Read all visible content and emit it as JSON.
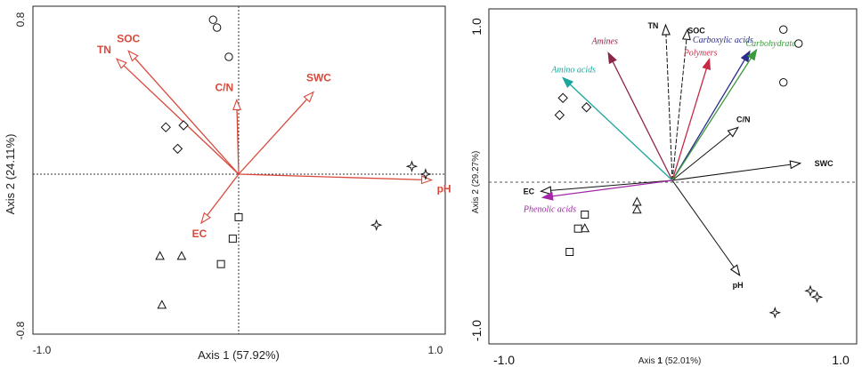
{
  "chart_data": [
    {
      "type": "scatter",
      "title": "",
      "xlabel": "Axis 1 (57.92%)",
      "ylabel": "Axis 2 (24.11%)",
      "xlim": [
        -1.0,
        1.0
      ],
      "ylim": [
        -0.8,
        0.8
      ],
      "xticks": [
        "-1.0",
        "1.0"
      ],
      "yticks": [
        "0.8",
        "-0.8"
      ],
      "grid": false,
      "colors": {
        "vectors": "#d9483b",
        "points": "#111111"
      },
      "vectors": [
        {
          "label": "TN",
          "x": -0.62,
          "y": 0.59
        },
        {
          "label": "SOC",
          "x": -0.56,
          "y": 0.63
        },
        {
          "label": "C/N",
          "x": -0.01,
          "y": 0.38
        },
        {
          "label": "SWC",
          "x": 0.38,
          "y": 0.42
        },
        {
          "label": "pH",
          "x": 0.98,
          "y": -0.03
        },
        {
          "label": "EC",
          "x": -0.19,
          "y": -0.25
        }
      ],
      "points": [
        {
          "shape": "circle",
          "x": -0.13,
          "y": 0.79
        },
        {
          "shape": "circle",
          "x": -0.11,
          "y": 0.75
        },
        {
          "shape": "circle",
          "x": -0.05,
          "y": 0.6
        },
        {
          "shape": "diamond",
          "x": -0.37,
          "y": 0.24
        },
        {
          "shape": "diamond",
          "x": -0.28,
          "y": 0.25
        },
        {
          "shape": "diamond",
          "x": -0.31,
          "y": 0.13
        },
        {
          "shape": "square",
          "x": 0.0,
          "y": -0.22
        },
        {
          "shape": "square",
          "x": -0.03,
          "y": -0.33
        },
        {
          "shape": "square",
          "x": -0.09,
          "y": -0.46
        },
        {
          "shape": "triangle",
          "x": -0.4,
          "y": -0.42
        },
        {
          "shape": "triangle",
          "x": -0.29,
          "y": -0.42
        },
        {
          "shape": "triangle",
          "x": -0.39,
          "y": -0.67
        },
        {
          "shape": "star",
          "x": 0.88,
          "y": 0.04
        },
        {
          "shape": "star",
          "x": 0.95,
          "y": 0.0
        },
        {
          "shape": "star",
          "x": 0.7,
          "y": -0.26
        }
      ]
    },
    {
      "type": "scatter",
      "title": "",
      "xlabel_prefix": "Axis ",
      "xlabel_num": "1",
      "xlabel_suffix": " (52.01%)",
      "ylabel": "Axis 2 (29.27%)",
      "xlim": [
        -1.0,
        1.0
      ],
      "ylim": [
        -1.0,
        1.0
      ],
      "xticks": [
        "-1.0",
        "1.0"
      ],
      "yticks": [
        "1.0",
        "-1.0"
      ],
      "grid": false,
      "vectors": [
        {
          "label": "TN",
          "x": -0.04,
          "y": 1.0,
          "style": "black",
          "dashed": true
        },
        {
          "label": "SOC",
          "x": 0.09,
          "y": 0.97,
          "style": "black",
          "dashed": true
        },
        {
          "label": "C/N",
          "x": 0.39,
          "y": 0.34,
          "style": "black",
          "dashed": false
        },
        {
          "label": "SWC",
          "x": 0.76,
          "y": 0.11,
          "style": "black",
          "dashed": false
        },
        {
          "label": "pH",
          "x": 0.4,
          "y": -0.61,
          "style": "black",
          "dashed": false
        },
        {
          "label": "EC",
          "x": -0.78,
          "y": -0.07,
          "style": "black",
          "dashed": false
        },
        {
          "label": "Amines",
          "x": -0.38,
          "y": 0.82,
          "style": "italic",
          "color": "#8b2645"
        },
        {
          "label": "Carboxylic acids",
          "x": 0.46,
          "y": 0.83,
          "style": "italic",
          "color": "#2b2d8a"
        },
        {
          "label": "Polymers",
          "x": 0.22,
          "y": 0.78,
          "style": "italic",
          "color": "#c62b45"
        },
        {
          "label": "Carbohydrates",
          "x": 0.5,
          "y": 0.84,
          "style": "italic",
          "color": "#3a9a3c"
        },
        {
          "label": "Amino acids",
          "x": -0.65,
          "y": 0.66,
          "style": "italic",
          "color": "#1aa79b"
        },
        {
          "label": "Phenolic acids",
          "x": -0.77,
          "y": -0.11,
          "style": "italic",
          "color": "#a326a8"
        }
      ],
      "points": [
        {
          "shape": "circle",
          "x": 0.66,
          "y": 0.97
        },
        {
          "shape": "circle",
          "x": 0.75,
          "y": 0.88
        },
        {
          "shape": "circle",
          "x": 0.66,
          "y": 0.63
        },
        {
          "shape": "diamond",
          "x": -0.65,
          "y": 0.53
        },
        {
          "shape": "diamond",
          "x": -0.51,
          "y": 0.47
        },
        {
          "shape": "diamond",
          "x": -0.67,
          "y": 0.42
        },
        {
          "shape": "triangle",
          "x": -0.21,
          "y": -0.14
        },
        {
          "shape": "triangle",
          "x": -0.21,
          "y": -0.19
        },
        {
          "shape": "triangle",
          "x": -0.52,
          "y": -0.31
        },
        {
          "shape": "square",
          "x": -0.52,
          "y": -0.22
        },
        {
          "shape": "square",
          "x": -0.56,
          "y": -0.31
        },
        {
          "shape": "square",
          "x": -0.61,
          "y": -0.46
        },
        {
          "shape": "star",
          "x": 0.82,
          "y": -0.71
        },
        {
          "shape": "star",
          "x": 0.86,
          "y": -0.75
        },
        {
          "shape": "star",
          "x": 0.61,
          "y": -0.85
        }
      ]
    }
  ]
}
